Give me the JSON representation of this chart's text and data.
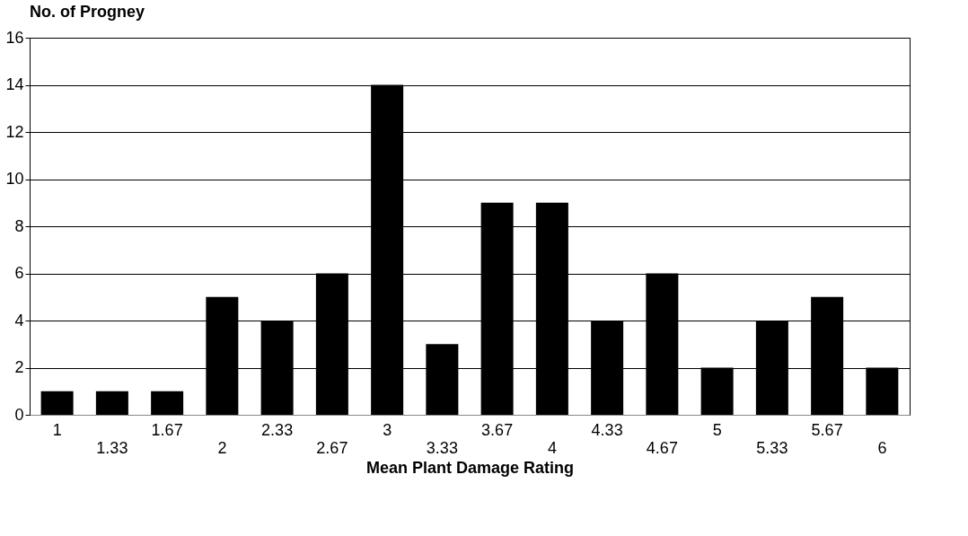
{
  "chart_data": {
    "type": "bar",
    "ylabel": "No. of Progney",
    "xlabel": "Mean Plant Damage Rating",
    "categories": [
      "1",
      "1.33",
      "1.67",
      "2",
      "2.33",
      "2.67",
      "3",
      "3.33",
      "3.67",
      "4",
      "4.33",
      "4.67",
      "5",
      "5.33",
      "5.67",
      "6"
    ],
    "values": [
      1,
      1,
      1,
      5,
      4,
      6,
      14,
      3,
      9,
      9,
      4,
      6,
      2,
      4,
      5,
      2
    ],
    "color": "#000000",
    "ylim": [
      0,
      16
    ],
    "yticks": [
      0,
      2,
      4,
      6,
      8,
      10,
      12,
      14,
      16
    ],
    "grid": "y"
  }
}
